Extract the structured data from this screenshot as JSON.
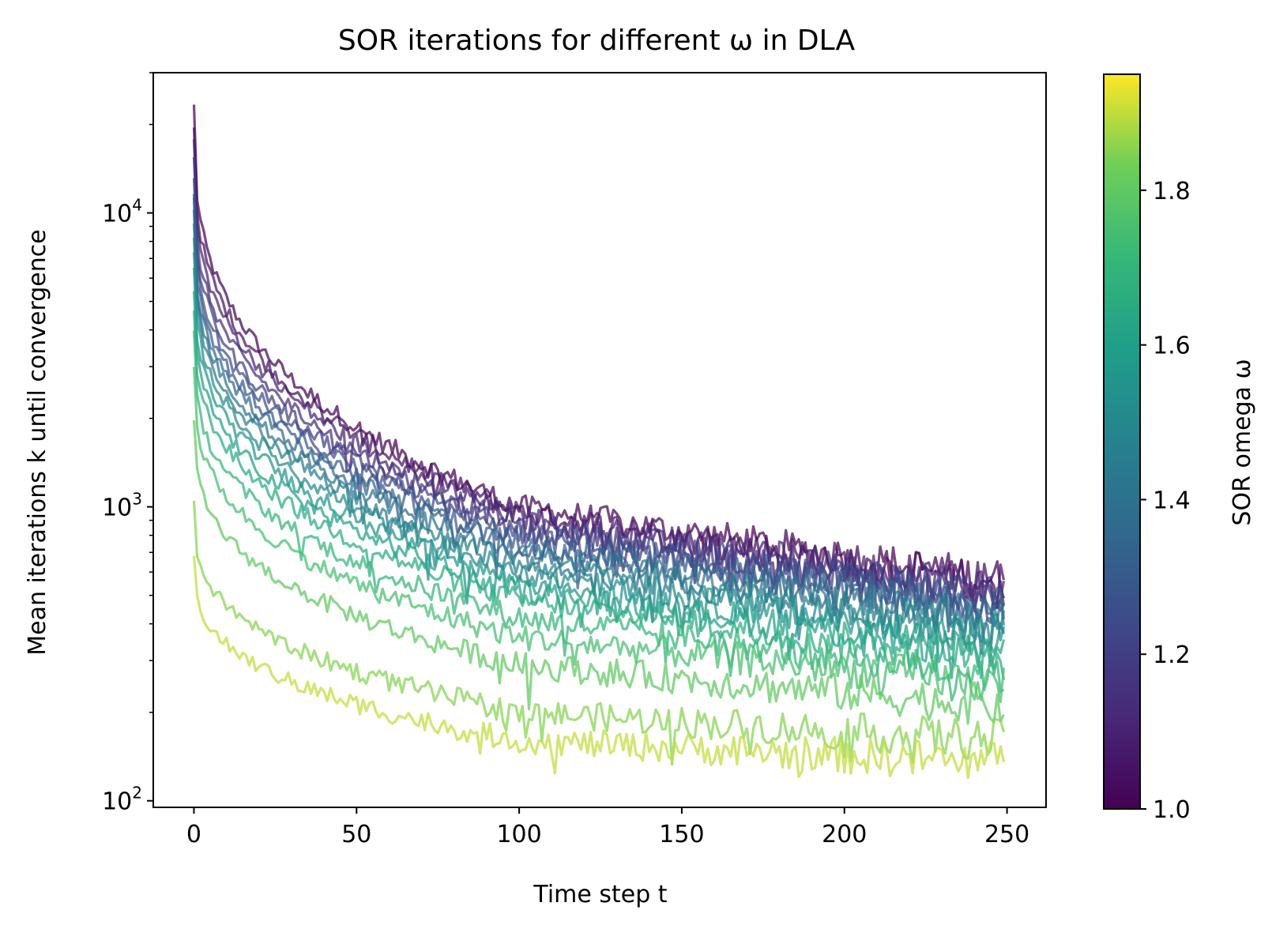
{
  "chart_data": {
    "type": "line",
    "title": "SOR iterations for different ω in DLA",
    "xlabel": "Time step t",
    "ylabel": "Mean iterations k until convergence",
    "xlim": [
      -12.5,
      262
    ],
    "ylim": [
      95,
      30000
    ],
    "y_scale": "log",
    "grid": false,
    "x_ticks": [
      0,
      50,
      100,
      150,
      200,
      250
    ],
    "y_ticks": [
      {
        "value": 100,
        "base": "10",
        "exp": "2"
      },
      {
        "value": 1000,
        "base": "10",
        "exp": "3"
      },
      {
        "value": 10000,
        "base": "10",
        "exp": "4"
      }
    ],
    "colorbar": {
      "label": "SOR omega ω",
      "colormap": "viridis",
      "vmin": 1.0,
      "vmax": 1.95,
      "ticks": [
        "1.0",
        "1.2",
        "1.4",
        "1.6",
        "1.8"
      ]
    },
    "series": [
      {
        "omega": 1.0,
        "start": 23000,
        "mid": 1000,
        "end": 560
      },
      {
        "omega": 1.05,
        "start": 20000,
        "mid": 960,
        "end": 540
      },
      {
        "omega": 1.1,
        "start": 17500,
        "mid": 920,
        "end": 520
      },
      {
        "omega": 1.15,
        "start": 15000,
        "mid": 880,
        "end": 500
      },
      {
        "omega": 1.2,
        "start": 13500,
        "mid": 830,
        "end": 490
      },
      {
        "omega": 1.25,
        "start": 12000,
        "mid": 790,
        "end": 470
      },
      {
        "omega": 1.3,
        "start": 11000,
        "mid": 750,
        "end": 450
      },
      {
        "omega": 1.35,
        "start": 10000,
        "mid": 720,
        "end": 430
      },
      {
        "omega": 1.4,
        "start": 9200,
        "mid": 680,
        "end": 410
      },
      {
        "omega": 1.45,
        "start": 8500,
        "mid": 640,
        "end": 390
      },
      {
        "omega": 1.5,
        "start": 7500,
        "mid": 600,
        "end": 370
      },
      {
        "omega": 1.55,
        "start": 6500,
        "mid": 560,
        "end": 350
      },
      {
        "omega": 1.6,
        "start": 5500,
        "mid": 520,
        "end": 320
      },
      {
        "omega": 1.65,
        "start": 4800,
        "mid": 480,
        "end": 300
      },
      {
        "omega": 1.7,
        "start": 3800,
        "mid": 420,
        "end": 270
      },
      {
        "omega": 1.75,
        "start": 3000,
        "mid": 360,
        "end": 250
      },
      {
        "omega": 1.8,
        "start": 2000,
        "mid": 290,
        "end": 210
      },
      {
        "omega": 1.85,
        "start": 1000,
        "mid": 200,
        "end": 160
      },
      {
        "omega": 1.9,
        "start": 680,
        "mid": 160,
        "end": 135
      }
    ]
  }
}
